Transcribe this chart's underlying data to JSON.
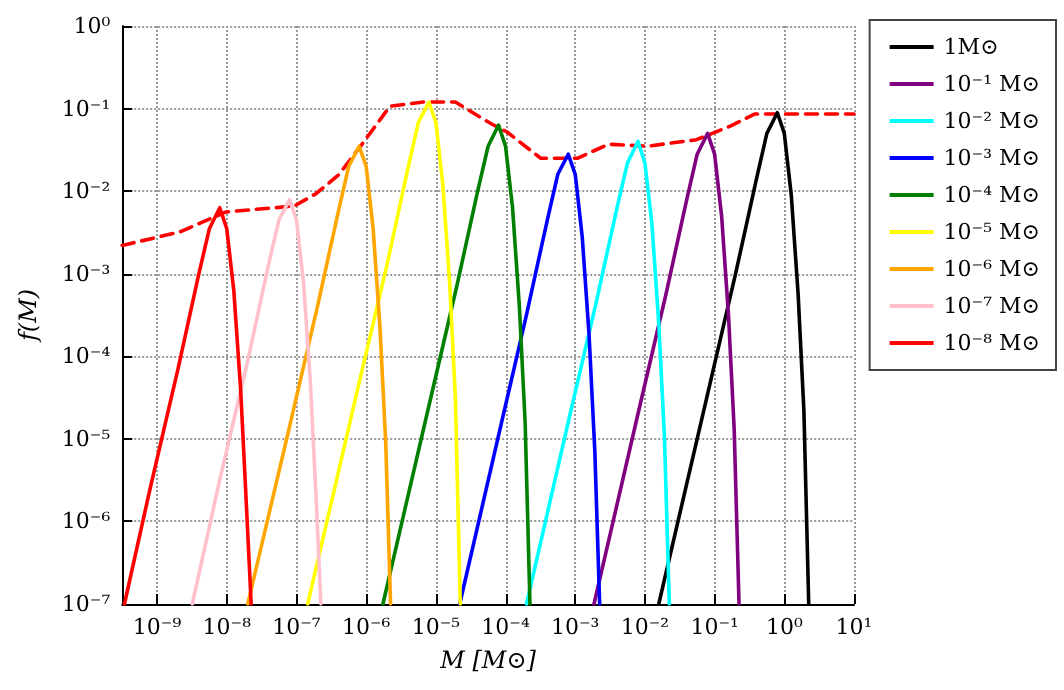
{
  "chart_data": {
    "type": "line",
    "xlabel": "M [M⊙]",
    "ylabel": "f(M)",
    "log": "xy",
    "grid": true,
    "legend": "right",
    "marker": "none",
    "line_style": "solid",
    "xlim": [
      3.16e-10,
      10
    ],
    "ylim": [
      1e-07,
      1
    ],
    "xticks": [
      {
        "value": 1e-09,
        "label": "10⁻⁹"
      },
      {
        "value": 1e-08,
        "label": "10⁻⁸"
      },
      {
        "value": 1e-07,
        "label": "10⁻⁷"
      },
      {
        "value": 1e-06,
        "label": "10⁻⁶"
      },
      {
        "value": 1e-05,
        "label": "10⁻⁵"
      },
      {
        "value": 0.0001,
        "label": "10⁻⁴"
      },
      {
        "value": 0.001,
        "label": "10⁻³"
      },
      {
        "value": 0.01,
        "label": "10⁻²"
      },
      {
        "value": 0.1,
        "label": "10⁻¹"
      },
      {
        "value": 1,
        "label": "10⁰"
      },
      {
        "value": 10,
        "label": "10¹"
      }
    ],
    "yticks": [
      {
        "value": 1e-07,
        "label": "10⁻⁷"
      },
      {
        "value": 1e-06,
        "label": "10⁻⁶"
      },
      {
        "value": 1e-05,
        "label": "10⁻⁵"
      },
      {
        "value": 0.0001,
        "label": "10⁻⁴"
      },
      {
        "value": 0.001,
        "label": "10⁻³"
      },
      {
        "value": 0.01,
        "label": "10⁻²"
      },
      {
        "value": 0.1,
        "label": "10⁻¹"
      },
      {
        "value": 1,
        "label": "10⁰"
      }
    ],
    "series": [
      {
        "name": "1M⊙",
        "color": "#000000",
        "x": [
          0.0158,
          0.0794,
          0.2,
          0.398,
          0.562,
          0.794,
          1,
          1.26,
          1.58,
          1.91,
          2.24
        ],
        "values": [
          1e-07,
          3.5e-05,
          0.001,
          0.014,
          0.05,
          0.089,
          0.05,
          0.0089,
          0.00056,
          2.2e-05,
          1e-07
        ]
      },
      {
        "name": "10⁻¹ M⊙",
        "color": "#800080",
        "x": [
          0.00186,
          0.00794,
          0.02,
          0.0398,
          0.0562,
          0.0794,
          0.1,
          0.126,
          0.158,
          0.191,
          0.224
        ],
        "values": [
          1e-07,
          2e-05,
          0.00056,
          0.0079,
          0.028,
          0.05,
          0.028,
          0.005,
          0.00032,
          1.3e-05,
          1e-07
        ]
      },
      {
        "name": "10⁻² M⊙",
        "color": "#00ffff",
        "x": [
          0.0002,
          0.000794,
          0.002,
          0.00398,
          0.00562,
          0.00794,
          0.01,
          0.0126,
          0.0158,
          0.0191,
          0.0224
        ],
        "values": [
          1e-07,
          1.6e-05,
          0.00045,
          0.0063,
          0.022,
          0.04,
          0.022,
          0.004,
          0.00025,
          1e-05,
          1e-07
        ]
      },
      {
        "name": "10⁻³ M⊙",
        "color": "#0000ff",
        "x": [
          2.2e-05,
          7.94e-05,
          0.0002,
          0.000398,
          0.000562,
          0.000794,
          0.001,
          0.00126,
          0.00158,
          0.00191,
          0.00224
        ],
        "values": [
          1e-07,
          1.1e-05,
          0.00032,
          0.0045,
          0.016,
          0.028,
          0.016,
          0.0028,
          0.00018,
          7.1e-06,
          1e-07
        ]
      },
      {
        "name": "10⁻⁴ M⊙",
        "color": "#008000",
        "x": [
          1.74e-06,
          7.94e-06,
          2e-05,
          3.98e-05,
          5.62e-05,
          7.94e-05,
          0.0001,
          0.000126,
          0.000158,
          0.000191,
          0.000224
        ],
        "values": [
          1e-07,
          2.5e-05,
          0.00071,
          0.01,
          0.035,
          0.063,
          0.035,
          0.0063,
          0.0004,
          1.6e-05,
          1e-07
        ]
      },
      {
        "name": "10⁻⁵ M⊙",
        "color": "#ffff00",
        "x": [
          1.45e-07,
          7.94e-07,
          2e-06,
          3.98e-06,
          5.62e-06,
          7.94e-06,
          1e-05,
          1.26e-05,
          1.58e-05,
          1.91e-05,
          2.24e-05
        ],
        "values": [
          1e-07,
          4.8e-05,
          0.0013,
          0.019,
          0.068,
          0.12,
          0.068,
          0.012,
          0.00076,
          3e-05,
          1e-07
        ]
      },
      {
        "name": "10⁻⁶ M⊙",
        "color": "#ffa500",
        "x": [
          2e-08,
          7.94e-08,
          2e-07,
          3.98e-07,
          5.62e-07,
          7.94e-07,
          1e-06,
          1.26e-06,
          1.58e-06,
          1.91e-06,
          2.24e-06
        ],
        "values": [
          1e-07,
          1.4e-05,
          0.0004,
          0.0056,
          0.02,
          0.035,
          0.02,
          0.0035,
          0.00022,
          8.9e-06,
          1e-07
        ]
      },
      {
        "name": "10⁻⁷ M⊙",
        "color": "#ffc0cb",
        "x": [
          3.2e-09,
          7.94e-09,
          2e-08,
          3.98e-08,
          5.62e-08,
          7.94e-08,
          1e-07,
          1.26e-07,
          1.58e-07,
          1.91e-07,
          2.24e-07
        ],
        "values": [
          1e-07,
          3.2e-06,
          8.9e-05,
          0.0013,
          0.0045,
          0.0079,
          0.0045,
          0.00079,
          5e-05,
          2e-06,
          1e-07
        ]
      },
      {
        "name": "10⁻⁸ M⊙",
        "color": "#ff0000",
        "x": [
          3.4e-10,
          7.94e-10,
          2e-09,
          3.98e-09,
          5.62e-09,
          7.94e-09,
          1e-08,
          1.26e-08,
          1.58e-08,
          1.91e-08,
          2.24e-08
        ],
        "values": [
          1e-07,
          2.5e-06,
          7.1e-05,
          0.001,
          0.0035,
          0.0063,
          0.0035,
          0.00063,
          4e-05,
          1.6e-06,
          1e-07
        ]
      },
      {
        "color": "#ff0000",
        "line_style": "dashed",
        "x": [
          3.16e-10,
          2.1e-09,
          9.8e-09,
          9.3e-08,
          1.9e-07,
          4.1e-07,
          8.3e-07,
          2.2e-06,
          6.6e-06,
          1.9e-05,
          6.3e-05,
          0.000105,
          0.00032,
          0.00107,
          0.003,
          0.011,
          0.055,
          0.165,
          0.38,
          1.38,
          10
        ],
        "values": [
          0.0022,
          0.0032,
          0.0056,
          0.0066,
          0.0093,
          0.016,
          0.035,
          0.107,
          0.12,
          0.12,
          0.065,
          0.052,
          0.025,
          0.025,
          0.037,
          0.035,
          0.042,
          0.061,
          0.086,
          0.086,
          0.086
        ]
      }
    ]
  }
}
